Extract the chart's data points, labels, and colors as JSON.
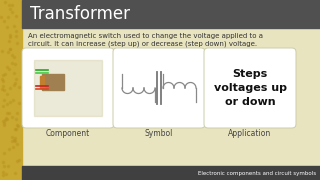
{
  "title": "Transformer",
  "description_line1": "An electromagnetic switch used to change the voltage applied to a",
  "description_line2": "circuit. It can increase (step up) or decrease (step down) voltage.",
  "label1": "Component",
  "label2": "Symbol",
  "label3": "Application",
  "app_text": "Steps\nvoltages up\nor down",
  "footer": "Electronic components and circuit symbols",
  "bg_main": "#e8e4c0",
  "bg_left_strip": "#c8a830",
  "bg_title_bar": "#505050",
  "title_color": "#ffffff",
  "footer_bg": "#404040",
  "footer_color": "#ffffff",
  "desc_color": "#333333",
  "label_color": "#444444",
  "box_outline": "#ccccaa"
}
